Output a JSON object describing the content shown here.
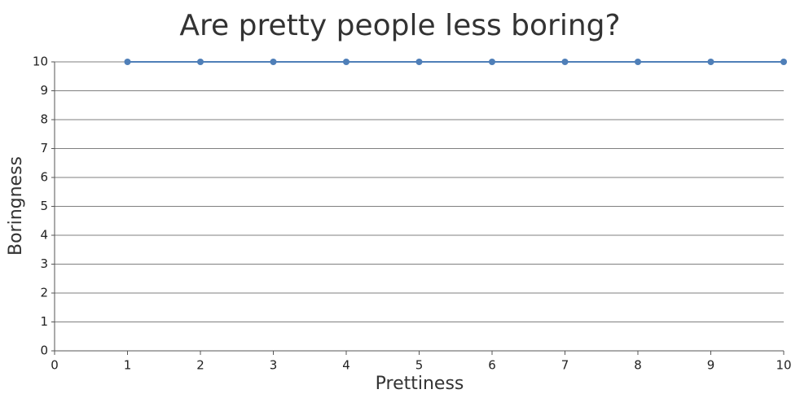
{
  "chart_data": {
    "type": "line",
    "title": "Are pretty people less boring?",
    "x_label": "Prettiness",
    "y_label": "Boringness",
    "x": [
      1,
      2,
      3,
      4,
      5,
      6,
      7,
      8,
      9,
      10
    ],
    "values": [
      10,
      10,
      10,
      10,
      10,
      10,
      10,
      10,
      10,
      10
    ],
    "color": "#4f7fb8",
    "xlim": [
      0,
      10
    ],
    "xticks": [
      0,
      1,
      2,
      3,
      4,
      5,
      6,
      7,
      8,
      9,
      10
    ],
    "ylim": [
      0,
      10
    ],
    "yticks": [
      0,
      1,
      2,
      3,
      4,
      5,
      6,
      7,
      8,
      9,
      10
    ],
    "grid": true
  }
}
